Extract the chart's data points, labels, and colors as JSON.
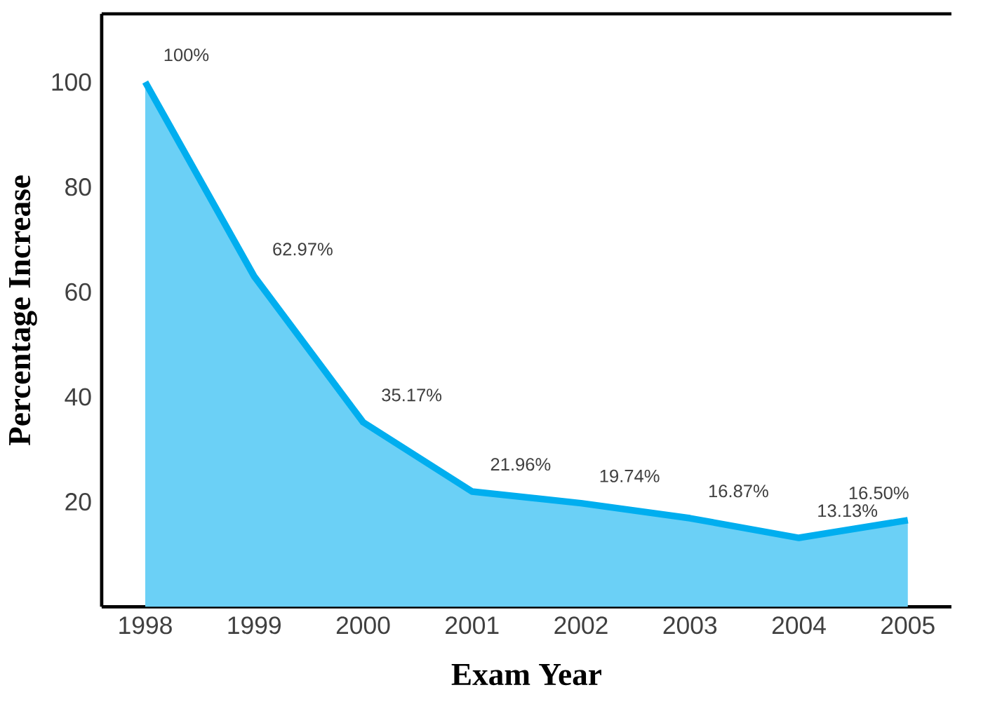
{
  "chart_data": {
    "type": "area",
    "xlabel": "Exam Year",
    "ylabel": "Percentage Increase",
    "categories": [
      "1998",
      "1999",
      "2000",
      "2001",
      "2002",
      "2003",
      "2004",
      "2005"
    ],
    "series": [
      {
        "color": "#00aeef",
        "values": [
          100,
          62.97,
          35.17,
          21.96,
          19.74,
          16.87,
          13.13,
          16.5
        ],
        "value_labels": [
          "100%",
          "62.97%",
          "35.17%",
          "21.96%",
          "19.74%",
          "16.87%",
          "13.13%",
          "16.50%"
        ]
      }
    ],
    "ylim": [
      0,
      113
    ],
    "yticks": [
      20,
      40,
      60,
      80,
      100
    ],
    "grid": false,
    "marker": "none",
    "line_style": "solid"
  }
}
